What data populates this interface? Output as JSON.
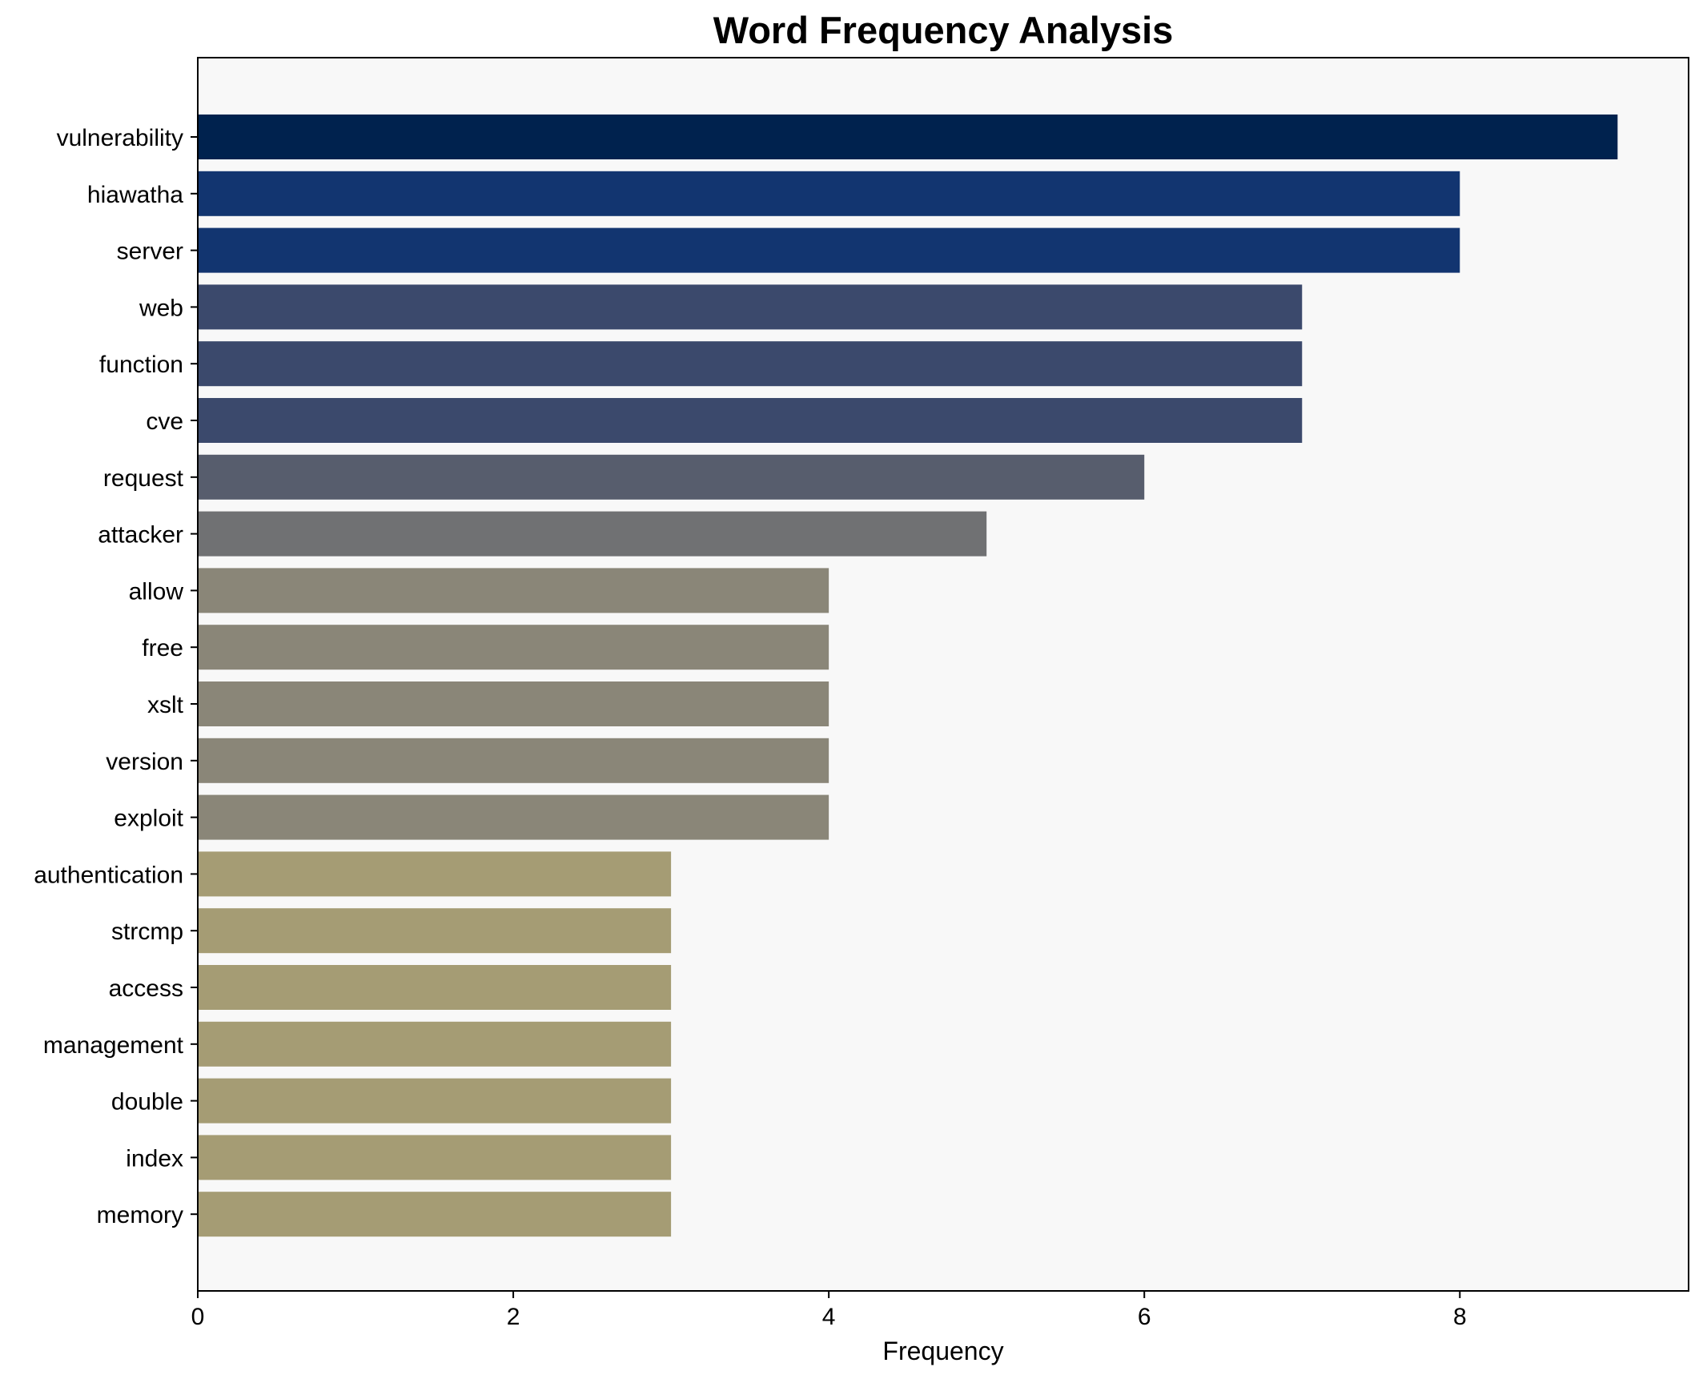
{
  "chart_data": {
    "type": "bar",
    "orientation": "horizontal",
    "title": "Word Frequency Analysis",
    "xlabel": "Frequency",
    "ylabel": "",
    "xlim": [
      0,
      9.45
    ],
    "xticks": [
      0,
      2,
      4,
      6,
      8
    ],
    "grid": false,
    "legend": "none",
    "background": "#f8f8f8",
    "categories": [
      "vulnerability",
      "hiawatha",
      "server",
      "web",
      "function",
      "cve",
      "request",
      "attacker",
      "allow",
      "free",
      "xslt",
      "version",
      "exploit",
      "authentication",
      "strcmp",
      "access",
      "management",
      "double",
      "index",
      "memory"
    ],
    "values": [
      9,
      8,
      8,
      7,
      7,
      7,
      6,
      5,
      4,
      4,
      4,
      4,
      4,
      3,
      3,
      3,
      3,
      3,
      3,
      3
    ],
    "colors": [
      "#00224e",
      "#123570",
      "#123570",
      "#3b496c",
      "#3b496c",
      "#3b496c",
      "#575d6d",
      "#707173",
      "#8a8678",
      "#8a8678",
      "#8a8678",
      "#8a8678",
      "#8a8678",
      "#a59c74",
      "#a59c74",
      "#a59c74",
      "#a59c74",
      "#a59c74",
      "#a59c74",
      "#a59c74"
    ]
  }
}
